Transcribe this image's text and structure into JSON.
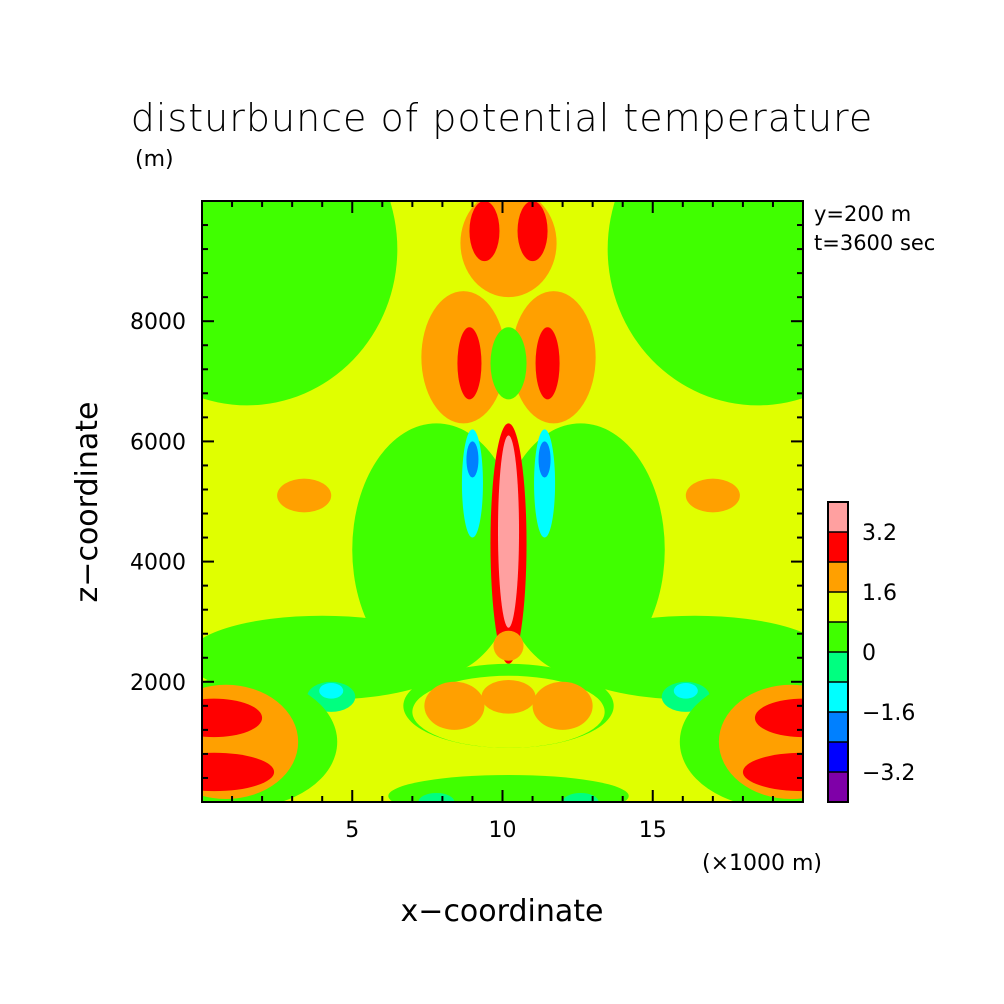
{
  "chart_data": {
    "type": "heatmap",
    "title": "disturbunce of potential temperature",
    "units_label": "(m)",
    "annotation": [
      "y=200 m",
      "t=3600 sec"
    ],
    "xlabel": "x−coordinate",
    "ylabel": "z−coordinate",
    "x_unit_label": "(×1000 m)",
    "xlim": [
      0,
      20
    ],
    "ylim": [
      0,
      10000
    ],
    "x_ticks": [
      5,
      10,
      15
    ],
    "x_ticklabels": [
      "5",
      "10",
      "15"
    ],
    "y_ticks": [
      2000,
      4000,
      6000,
      8000
    ],
    "y_ticklabels": [
      "2000",
      "4000",
      "6000",
      "8000"
    ],
    "colorbar": {
      "levels": [
        -4.0,
        -3.2,
        -2.4,
        -1.6,
        -0.8,
        0,
        0.8,
        1.6,
        2.4,
        3.2,
        4.0
      ],
      "colors": [
        "#7f00a8",
        "#0000ff",
        "#0080ff",
        "#00ffff",
        "#00ff80",
        "#40ff00",
        "#e0ff00",
        "#ffa000",
        "#ff0000",
        "#ffa0a0"
      ],
      "ticklabels": [
        "3.2",
        "1.6",
        "0",
        "−1.6",
        "−3.2"
      ],
      "tick_values": [
        3.2,
        1.6,
        0,
        -1.6,
        -3.2
      ]
    },
    "background_color": "#e0ff00",
    "regions": [
      {
        "shape": "ellipse",
        "x": 1.5,
        "z": 9200,
        "rx": 5.0,
        "rz": 2600,
        "value": 0.4
      },
      {
        "shape": "ellipse",
        "x": 18.5,
        "z": 9200,
        "rx": 5.0,
        "rz": 2600,
        "value": 0.4
      },
      {
        "shape": "ellipse",
        "x": 10.2,
        "z": 9300,
        "rx": 1.6,
        "rz": 900,
        "value": 2.0
      },
      {
        "shape": "ellipse",
        "x": 9.4,
        "z": 9500,
        "rx": 0.5,
        "rz": 500,
        "value": 2.8
      },
      {
        "shape": "ellipse",
        "x": 11.0,
        "z": 9500,
        "rx": 0.5,
        "rz": 500,
        "value": 2.8
      },
      {
        "shape": "ellipse",
        "x": 8.7,
        "z": 7400,
        "rx": 1.4,
        "rz": 1100,
        "value": 2.0
      },
      {
        "shape": "ellipse",
        "x": 11.7,
        "z": 7400,
        "rx": 1.4,
        "rz": 1100,
        "value": 2.0
      },
      {
        "shape": "ellipse",
        "x": 8.9,
        "z": 7300,
        "rx": 0.4,
        "rz": 600,
        "value": 2.8
      },
      {
        "shape": "ellipse",
        "x": 11.5,
        "z": 7300,
        "rx": 0.4,
        "rz": 600,
        "value": 2.8
      },
      {
        "shape": "ellipse",
        "x": 10.2,
        "z": 7300,
        "rx": 0.6,
        "rz": 600,
        "value": 0.4
      },
      {
        "shape": "ellipse",
        "x": 7.8,
        "z": 4200,
        "rx": 2.8,
        "rz": 2100,
        "value": 0.4
      },
      {
        "shape": "ellipse",
        "x": 12.6,
        "z": 4200,
        "rx": 2.8,
        "rz": 2100,
        "value": 0.4
      },
      {
        "shape": "ellipse",
        "x": 4.0,
        "z": 2400,
        "rx": 4.5,
        "rz": 700,
        "value": 0.4
      },
      {
        "shape": "ellipse",
        "x": 16.4,
        "z": 2400,
        "rx": 4.5,
        "rz": 700,
        "value": 0.4
      },
      {
        "shape": "ellipse",
        "x": 9.0,
        "z": 5300,
        "rx": 0.35,
        "rz": 900,
        "value": -1.2
      },
      {
        "shape": "ellipse",
        "x": 11.4,
        "z": 5300,
        "rx": 0.35,
        "rz": 900,
        "value": -1.2
      },
      {
        "shape": "ellipse",
        "x": 9.0,
        "z": 5700,
        "rx": 0.2,
        "rz": 300,
        "value": -2.0
      },
      {
        "shape": "ellipse",
        "x": 11.4,
        "z": 5700,
        "rx": 0.2,
        "rz": 300,
        "value": -2.0
      },
      {
        "shape": "ellipse",
        "x": 3.4,
        "z": 5100,
        "rx": 0.9,
        "rz": 280,
        "value": 2.0
      },
      {
        "shape": "ellipse",
        "x": 17.0,
        "z": 5100,
        "rx": 0.9,
        "rz": 280,
        "value": 2.0
      },
      {
        "shape": "ellipse",
        "x": 10.2,
        "z": 4300,
        "rx": 0.6,
        "rz": 2000,
        "value": 2.8
      },
      {
        "shape": "ellipse",
        "x": 10.2,
        "z": 4500,
        "rx": 0.35,
        "rz": 1600,
        "value": 3.6
      },
      {
        "shape": "ellipse",
        "x": 10.2,
        "z": 2600,
        "rx": 0.5,
        "rz": 250,
        "value": 2.0
      },
      {
        "shape": "ellipse",
        "x": 10.2,
        "z": 1600,
        "rx": 3.5,
        "rz": 700,
        "value": 0.4
      },
      {
        "shape": "ellipse",
        "x": 10.2,
        "z": 1500,
        "rx": 3.2,
        "rz": 600,
        "value": 1.2
      },
      {
        "shape": "ellipse",
        "x": 8.4,
        "z": 1600,
        "rx": 1.0,
        "rz": 400,
        "value": 2.0
      },
      {
        "shape": "ellipse",
        "x": 10.2,
        "z": 1750,
        "rx": 0.9,
        "rz": 280,
        "value": 2.0
      },
      {
        "shape": "ellipse",
        "x": 12.0,
        "z": 1600,
        "rx": 1.0,
        "rz": 400,
        "value": 2.0
      },
      {
        "shape": "ellipse",
        "x": 4.3,
        "z": 1750,
        "rx": 0.8,
        "rz": 250,
        "value": -0.4
      },
      {
        "shape": "ellipse",
        "x": 4.3,
        "z": 1850,
        "rx": 0.4,
        "rz": 130,
        "value": -1.2
      },
      {
        "shape": "ellipse",
        "x": 16.1,
        "z": 1750,
        "rx": 0.8,
        "rz": 250,
        "value": -0.4
      },
      {
        "shape": "ellipse",
        "x": 16.1,
        "z": 1850,
        "rx": 0.4,
        "rz": 130,
        "value": -1.2
      },
      {
        "shape": "ellipse",
        "x": 1.3,
        "z": 1000,
        "rx": 3.2,
        "rz": 1100,
        "value": 0.4
      },
      {
        "shape": "ellipse",
        "x": 19.1,
        "z": 1000,
        "rx": 3.2,
        "rz": 1100,
        "value": 0.4
      },
      {
        "shape": "ellipse",
        "x": 0.8,
        "z": 1000,
        "rx": 2.4,
        "rz": 950,
        "value": 2.0
      },
      {
        "shape": "ellipse",
        "x": 19.6,
        "z": 1000,
        "rx": 2.4,
        "rz": 950,
        "value": 2.0
      },
      {
        "shape": "ellipse",
        "x": 0.4,
        "z": 1400,
        "rx": 1.6,
        "rz": 320,
        "value": 2.8
      },
      {
        "shape": "ellipse",
        "x": 0.4,
        "z": 500,
        "rx": 2.0,
        "rz": 320,
        "value": 2.8
      },
      {
        "shape": "ellipse",
        "x": 20.0,
        "z": 1400,
        "rx": 1.6,
        "rz": 320,
        "value": 2.8
      },
      {
        "shape": "ellipse",
        "x": 20.0,
        "z": 500,
        "rx": 2.0,
        "rz": 320,
        "value": 2.8
      },
      {
        "shape": "ellipse",
        "x": 10.2,
        "z": 100,
        "rx": 4.0,
        "rz": 350,
        "value": 0.4
      },
      {
        "shape": "ellipse",
        "x": 7.8,
        "z": 0,
        "rx": 0.6,
        "rz": 150,
        "value": -0.4
      },
      {
        "shape": "ellipse",
        "x": 12.6,
        "z": 0,
        "rx": 0.6,
        "rz": 150,
        "value": -0.4
      }
    ]
  }
}
